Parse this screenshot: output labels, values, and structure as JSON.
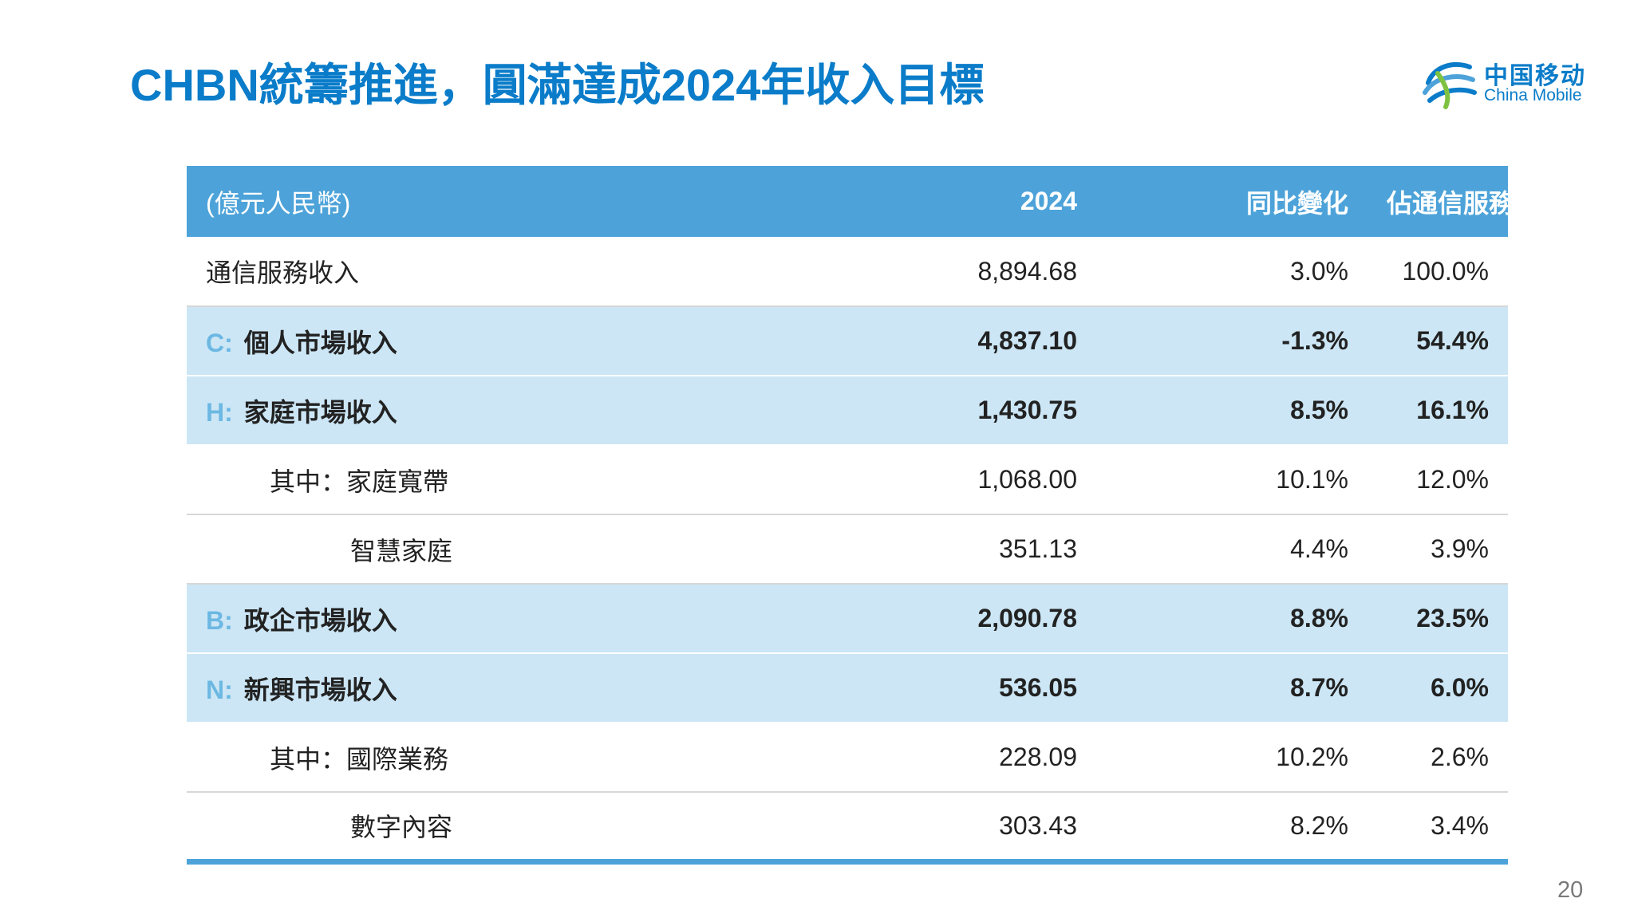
{
  "slide": {
    "title": "CHBN統籌推進，圓滿達成2024年收入目標",
    "page_number": "20"
  },
  "logo": {
    "icon": "china-mobile-logo-icon",
    "cn": "中国移动",
    "en": "China Mobile",
    "color": "#0a7cc9"
  },
  "table": {
    "header_color": "#4da3d9",
    "highlight_color": "#cce6f5",
    "headers": [
      "(億元人民幣)",
      "2024",
      "同比變化",
      "佔通信服務收入比"
    ],
    "rows": [
      {
        "prefix": "",
        "label": "通信服務收入",
        "value": "8,894.68",
        "yoy": "3.0%",
        "share": "100.0%"
      },
      {
        "prefix": "C:",
        "label": "個人市場收入",
        "value": "4,837.10",
        "yoy": "-1.3%",
        "share": "54.4%"
      },
      {
        "prefix": "H:",
        "label": "家庭市場收入",
        "value": "1,430.75",
        "yoy": "8.5%",
        "share": "16.1%"
      },
      {
        "prefix": "",
        "label": "其中：家庭寬帶",
        "value": "1,068.00",
        "yoy": "10.1%",
        "share": "12.0%"
      },
      {
        "prefix": "",
        "label": "智慧家庭",
        "value": "351.13",
        "yoy": "4.4%",
        "share": "3.9%"
      },
      {
        "prefix": "B:",
        "label": "政企市場收入",
        "value": "2,090.78",
        "yoy": "8.8%",
        "share": "23.5%"
      },
      {
        "prefix": "N:",
        "label": "新興市場收入",
        "value": "536.05",
        "yoy": "8.7%",
        "share": "6.0%"
      },
      {
        "prefix": "",
        "label": "其中：國際業務",
        "value": "228.09",
        "yoy": "10.2%",
        "share": "2.6%"
      },
      {
        "prefix": "",
        "label": "數字內容",
        "value": "303.43",
        "yoy": "8.2%",
        "share": "3.4%"
      }
    ]
  }
}
